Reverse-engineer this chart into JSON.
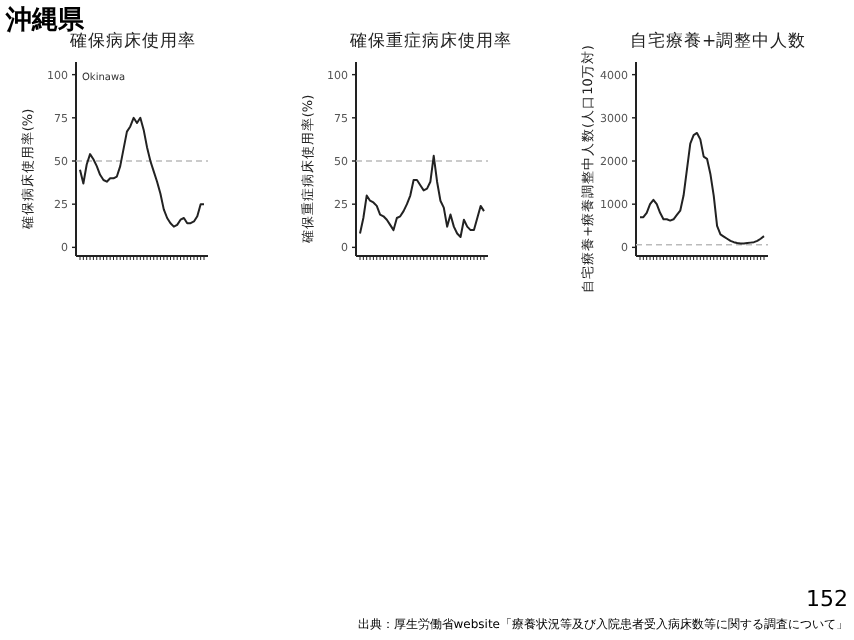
{
  "chart_data": [
    {
      "type": "line",
      "title": "確保病床使用率",
      "ylabel": "確保病床使用率(%)",
      "categories": [
        null,
        null,
        null,
        null,
        null,
        null,
        null,
        null,
        null,
        null,
        null,
        null,
        null,
        null,
        null,
        null,
        null,
        null,
        null,
        null,
        null,
        null,
        null,
        null,
        null,
        null,
        null,
        null,
        null,
        null,
        null,
        null,
        null,
        null,
        null,
        null,
        null,
        null
      ],
      "values": [
        45,
        37,
        48,
        54,
        51,
        47,
        42,
        39,
        38,
        40,
        40,
        41,
        47,
        57,
        67,
        70,
        75,
        72,
        75,
        68,
        58,
        50,
        44,
        38,
        31,
        22,
        17,
        14,
        12,
        13,
        16,
        17,
        14,
        14,
        15,
        18,
        25,
        25
      ],
      "color": "#222222",
      "ylim": [
        -5,
        105
      ],
      "yticks": [
        0,
        25,
        50,
        75,
        100
      ],
      "ref_lines": [
        {
          "axis": "y",
          "value": 50,
          "color": "#bbbbbb",
          "line_style": "dashed"
        }
      ],
      "annotations": [
        "沖縄県",
        "Okinawa"
      ]
    },
    {
      "type": "line",
      "title": "確保重症病床使用率",
      "ylabel": "確保重症病床使用率(%)",
      "categories": [
        null,
        null,
        null,
        null,
        null,
        null,
        null,
        null,
        null,
        null,
        null,
        null,
        null,
        null,
        null,
        null,
        null,
        null,
        null,
        null,
        null,
        null,
        null,
        null,
        null,
        null,
        null,
        null,
        null,
        null,
        null,
        null,
        null,
        null,
        null,
        null,
        null,
        null
      ],
      "values": [
        8,
        17,
        30,
        27,
        26,
        24,
        19,
        18,
        16,
        13,
        10,
        17,
        18,
        21,
        25,
        30,
        39,
        39,
        36,
        33,
        34,
        38,
        53,
        38,
        27,
        23,
        12,
        19,
        12,
        8,
        6,
        16,
        12,
        10,
        10,
        17,
        24,
        21
      ],
      "color": "#222222",
      "ylim": [
        -5,
        105
      ],
      "yticks": [
        0,
        25,
        50,
        75,
        100
      ],
      "ref_lines": [
        {
          "axis": "y",
          "value": 50,
          "color": "#bbbbbb",
          "line_style": "dashed"
        }
      ]
    },
    {
      "type": "line",
      "title": "自宅療養+調整中人数",
      "ylabel": "自宅療養+療養調整中人数(人口10万対)",
      "categories": [
        null,
        null,
        null,
        null,
        null,
        null,
        null,
        null,
        null,
        null,
        null,
        null,
        null,
        null,
        null,
        null,
        null,
        null,
        null,
        null,
        null,
        null,
        null,
        null,
        null,
        null,
        null,
        null,
        null,
        null,
        null,
        null,
        null,
        null,
        null,
        null,
        null,
        null
      ],
      "values": [
        700,
        700,
        800,
        1000,
        1100,
        1000,
        800,
        650,
        650,
        620,
        650,
        750,
        850,
        1200,
        1800,
        2400,
        2600,
        2650,
        2500,
        2100,
        2050,
        1700,
        1200,
        500,
        300,
        250,
        200,
        150,
        120,
        100,
        90,
        90,
        100,
        110,
        120,
        150,
        200,
        260
      ],
      "color": "#222222",
      "ylim": [
        -200,
        4200
      ],
      "yticks": [
        0,
        1000,
        2000,
        3000,
        4000
      ],
      "ref_lines": [
        {
          "axis": "y",
          "value": 60,
          "color": "#bbbbbb",
          "line_style": "dashed"
        }
      ],
      "annotations": [
        "152",
        "出典：厚生労働省website「療養状況等及び入院患者受入病床数等に関する調査について」"
      ]
    }
  ]
}
